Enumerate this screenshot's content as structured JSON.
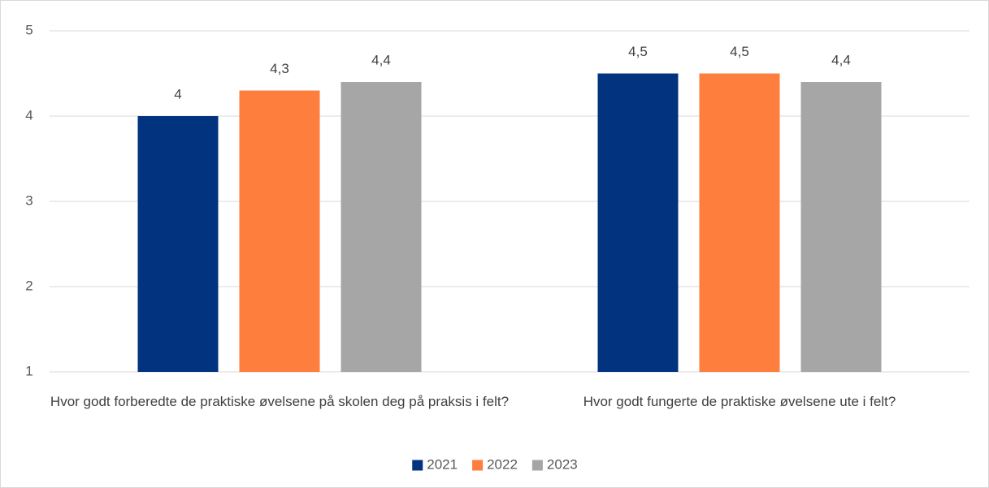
{
  "chart_data": {
    "type": "bar",
    "categories": [
      "Hvor godt forberedte de praktiske øvelsene på skolen deg på praksis i felt?",
      "Hvor godt fungerte de praktiske øvelsene ute i felt?"
    ],
    "series": [
      {
        "name": "2021",
        "color": "#01337f",
        "values": [
          4,
          4.5
        ],
        "value_labels": [
          "4",
          "4,5"
        ]
      },
      {
        "name": "2022",
        "color": "#fd7e3d",
        "values": [
          4.3,
          4.5
        ],
        "value_labels": [
          "4,3",
          "4,5"
        ]
      },
      {
        "name": "2023",
        "color": "#a6a6a6",
        "values": [
          4.4,
          4.4
        ],
        "value_labels": [
          "4,4",
          "4,4"
        ]
      }
    ],
    "ylim": [
      1,
      5
    ],
    "yticks": [
      1,
      2,
      3,
      4,
      5
    ],
    "grid": true,
    "legend": "bottom"
  }
}
